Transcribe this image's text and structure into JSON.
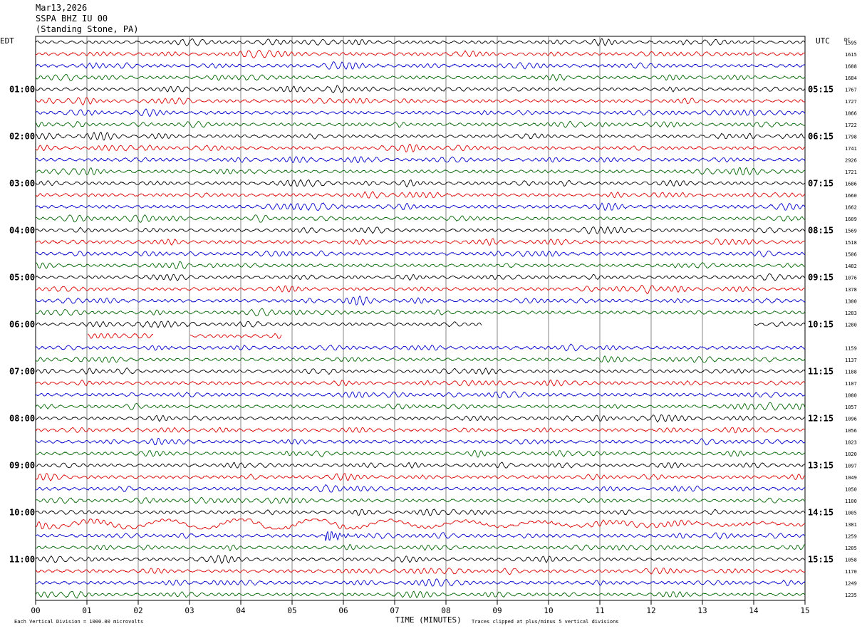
{
  "header": {
    "date": "Mar13,2026",
    "station": "SSPA BHZ IU 00",
    "location": "(Standing Stone, PA)"
  },
  "labels": {
    "left_tz": "EDT",
    "right_tz": "UTC",
    "right_col": "DC",
    "xlabel": "TIME (MINUTES)",
    "footer_scale": "Each Vertical Division = 1000.00 microvolts",
    "footer_clip": "Traces clipped at plus/minus 5 vertical divisions"
  },
  "chart_data": {
    "type": "line",
    "title": "SSPA BHZ IU 00 (Standing Stone, PA)",
    "xlabel": "TIME (MINUTES)",
    "xlim": [
      0,
      15
    ],
    "x_ticks": [
      "00",
      "01",
      "02",
      "03",
      "04",
      "05",
      "06",
      "07",
      "08",
      "09",
      "10",
      "11",
      "12",
      "13",
      "14",
      "15"
    ],
    "grid": true,
    "trace_colors": [
      "#000000",
      "#dd0000",
      "#0000cc",
      "#006600"
    ],
    "rows_per_hour": 4,
    "row_count": 48,
    "left_hour_labels": [
      "01:00",
      "02:00",
      "03:00",
      "04:00",
      "05:00",
      "06:00",
      "07:00",
      "08:00",
      "09:00",
      "10:00",
      "11:00"
    ],
    "right_hour_labels": [
      "05:15",
      "06:15",
      "07:15",
      "08:15",
      "09:15",
      "10:15",
      "11:15",
      "12:15",
      "13:15",
      "14:15",
      "15:15"
    ],
    "dc_offsets": [
      "1595",
      "1615",
      "1688",
      "1684",
      "1767",
      "1727",
      "1866",
      "1722",
      "1798",
      "1741",
      "2926",
      "1721",
      "1686",
      "1660",
      "1662",
      "1609",
      "1569",
      "1518",
      "1506",
      "1482",
      "1076",
      "1378",
      "1300",
      "1283",
      "1280",
      "",
      "1159",
      "1137",
      "1188",
      "1107",
      "1080",
      "1057",
      "1096",
      "1056",
      "1023",
      "1020",
      "1097",
      "1049",
      "1050",
      "1100",
      "1005",
      "1381",
      "1259",
      "1205",
      "1058",
      "1170",
      "1249",
      "1235"
    ],
    "events": [
      {
        "description": "small local event",
        "row": 42,
        "minute": 5.65
      },
      {
        "description": "teleseismic surface waves",
        "row": 41,
        "minute": 1.0
      }
    ],
    "gaps": [
      {
        "row": 24,
        "from_minute": 8.7,
        "to_minute": 14.0
      },
      {
        "row": 25,
        "from_minute": 0,
        "to_minute": 1.0
      },
      {
        "row": 25,
        "from_minute": 2.3,
        "to_minute": 3.0
      },
      {
        "row": 25,
        "from_minute": 4.8,
        "to_minute": 15
      }
    ]
  }
}
